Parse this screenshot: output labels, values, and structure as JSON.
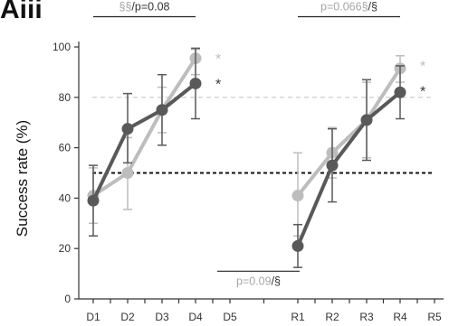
{
  "panel_label": "Aiii",
  "chart_data": {
    "type": "line",
    "ylabel": "Success rate (%)",
    "xlabel": "",
    "ylim": [
      0,
      100
    ],
    "yticks": [
      0,
      20,
      40,
      60,
      80,
      100
    ],
    "categories": [
      "D1",
      "D2",
      "D3",
      "D4",
      "D5",
      "R1",
      "R2",
      "R3",
      "R4",
      "R5"
    ],
    "grid": false,
    "colors": {
      "light": "#bdbdbd",
      "dark": "#595959",
      "annotation_grey": "#a6a6a6",
      "annotation_dark": "#333333"
    },
    "reference_lines": [
      {
        "y": 80,
        "style": "dashed",
        "color": "#c8c8c8"
      },
      {
        "y": 50,
        "style": "dashed",
        "color": "#111111"
      }
    ],
    "segments": [
      {
        "group": "D",
        "series": [
          {
            "style": "light",
            "x": [
              "D1",
              "D2",
              "D3",
              "D4"
            ],
            "values": [
              41,
              50,
              75,
              95.5
            ],
            "err_low": [
              30,
              35.5,
              66,
              89
            ],
            "err_high": [
              52,
              64,
              84,
              99
            ]
          },
          {
            "style": "dark",
            "x": [
              "D1",
              "D2",
              "D3",
              "D4"
            ],
            "values": [
              39,
              67.5,
              75,
              85.5
            ],
            "err_low": [
              25,
              54,
              61,
              71.5
            ],
            "err_high": [
              53,
              81.5,
              89,
              99.5
            ]
          }
        ]
      },
      {
        "group": "R",
        "series": [
          {
            "style": "light",
            "x": [
              "R1",
              "R2",
              "R3",
              "R4"
            ],
            "values": [
              41,
              58,
              71,
              91.5
            ],
            "err_low": [
              25,
              48,
              56,
              86
            ],
            "err_high": [
              58,
              68,
              86,
              96.5
            ]
          },
          {
            "style": "dark",
            "x": [
              "R1",
              "R2",
              "R3",
              "R4"
            ],
            "values": [
              21,
              53,
              71,
              82
            ],
            "err_low": [
              12.5,
              38.5,
              55,
              71.5
            ],
            "err_high": [
              29.5,
              67.5,
              87,
              92.5
            ]
          }
        ]
      }
    ],
    "significance": [
      {
        "id": "top-left",
        "parts": [
          {
            "text": "§§",
            "tone": "grey"
          },
          {
            "text": "/p=0.08",
            "tone": "dark"
          }
        ],
        "from": "D1",
        "to": "D4",
        "y": 112
      },
      {
        "id": "top-right",
        "parts": [
          {
            "text": "p=0.066§",
            "tone": "grey"
          },
          {
            "text": "/§",
            "tone": "dark"
          }
        ],
        "from": "R1",
        "to": "R4",
        "y": 112
      },
      {
        "id": "bottom-middle",
        "parts": [
          {
            "text": "p=0.09",
            "tone": "grey"
          },
          {
            "text": "/§",
            "tone": "dark"
          }
        ],
        "from": "D5",
        "to": "R1",
        "y": 11
      }
    ],
    "stars": [
      {
        "x": "D4",
        "y": 97,
        "text": "*",
        "tone": "grey"
      },
      {
        "x": "D4",
        "y": 87,
        "text": "*",
        "tone": "dark"
      },
      {
        "x": "R4",
        "y": 94,
        "text": "*",
        "tone": "grey"
      },
      {
        "x": "R4",
        "y": 84,
        "text": "*",
        "tone": "dark"
      }
    ]
  }
}
